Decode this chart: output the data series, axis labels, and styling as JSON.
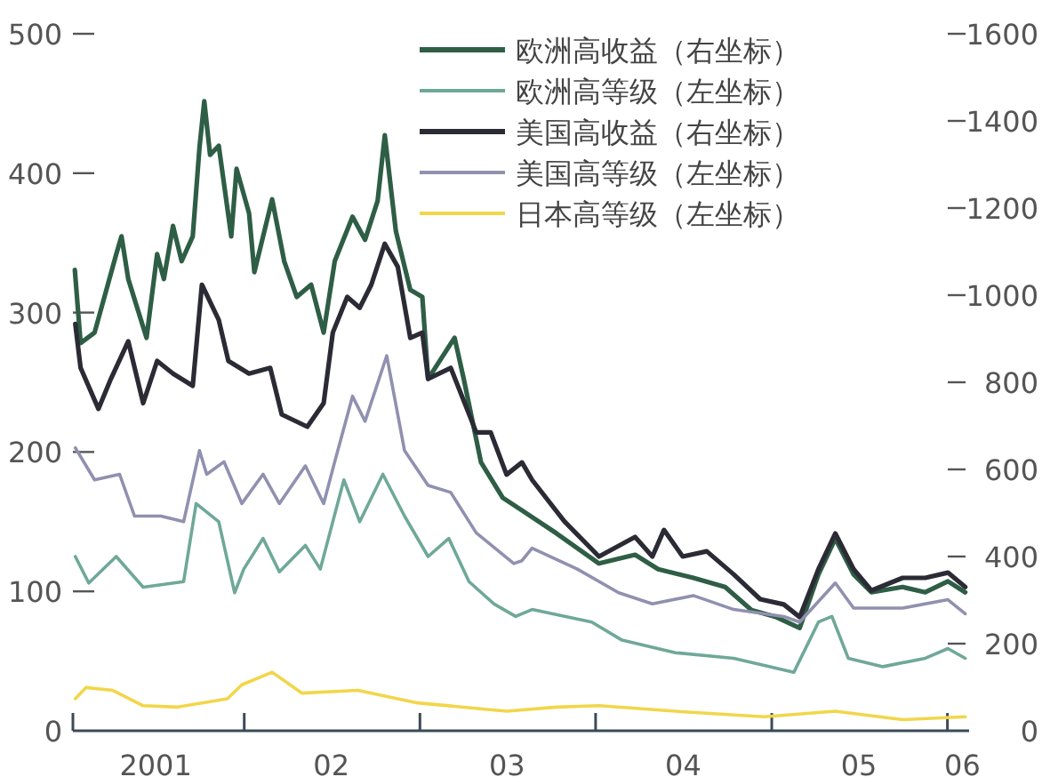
{
  "chart_data": {
    "type": "line",
    "legend": "top right",
    "xlim": [
      "2001-01-10",
      "2006-02-15"
    ],
    "xticks": [
      {
        "value": "2001-07-01",
        "label": "2001"
      },
      {
        "value": "2002-01-01",
        "label": null
      },
      {
        "value": "2002-07-01",
        "label": "02"
      },
      {
        "value": "2003-01-01",
        "label": null
      },
      {
        "value": "2003-07-01",
        "label": "03"
      },
      {
        "value": "2004-01-01",
        "label": null
      },
      {
        "value": "2004-07-01",
        "label": "04"
      },
      {
        "value": "2005-01-01",
        "label": null
      },
      {
        "value": "2005-07-01",
        "label": "05"
      },
      {
        "value": "2006-01-01",
        "label": null
      },
      {
        "value": "2006-02-01",
        "label": "06"
      }
    ],
    "ylim": [
      0,
      500
    ],
    "yticks": [
      0,
      100,
      200,
      300,
      400,
      500
    ],
    "y2lim": [
      0,
      1600
    ],
    "y2ticks": [
      0,
      200,
      400,
      600,
      800,
      1000,
      1200,
      1400,
      1600
    ],
    "series": [
      {
        "name": "欧洲高收益（右坐标）",
        "color": "#2e5e45",
        "axis": "y2",
        "x": [
          "2001-01-14",
          "2001-01-26",
          "2001-02-24",
          "2001-04-10",
          "2001-04-21",
          "2001-05-05",
          "2001-06-12",
          "2001-07-04",
          "2001-07-18",
          "2001-08-06",
          "2001-08-24",
          "2001-09-16",
          "2001-09-30",
          "2001-10-10",
          "2001-10-22",
          "2001-11-09",
          "2001-12-05",
          "2001-12-16",
          "2002-01-11",
          "2002-01-22",
          "2002-02-28",
          "2002-03-25",
          "2002-04-20",
          "2002-05-20",
          "2002-06-15",
          "2002-07-08",
          "2002-08-14",
          "2002-09-09",
          "2002-10-05",
          "2002-10-20",
          "2002-11-12",
          "2002-12-12",
          "2003-01-06",
          "2003-01-18",
          "2003-03-14",
          "2003-04-02",
          "2003-05-08",
          "2003-06-22",
          "2003-08-01",
          "2003-10-12",
          "2004-01-08",
          "2004-03-23",
          "2004-05-10",
          "2004-07-22",
          "2004-09-26",
          "2004-11-20",
          "2005-01-10",
          "2005-02-28",
          "2005-04-08",
          "2005-05-13",
          "2005-06-20",
          "2005-07-27",
          "2005-09-30",
          "2005-11-16",
          "2006-01-02",
          "2006-02-07"
        ],
        "values": [
          1058,
          890,
          914,
          1094,
          1135,
          1037,
          902,
          1094,
          1037,
          1159,
          1078,
          1135,
          1339,
          1445,
          1322,
          1343,
          1135,
          1290,
          1188,
          1053,
          1220,
          1078,
          996,
          1024,
          914,
          1078,
          1180,
          1127,
          1216,
          1367,
          1147,
          1012,
          996,
          808,
          902,
          808,
          616,
          535,
          506,
          453,
          384,
          404,
          371,
          351,
          330,
          277,
          261,
          236,
          359,
          441,
          359,
          318,
          330,
          318,
          343,
          318
        ]
      },
      {
        "name": "欧洲高等级（左坐标）",
        "color": "#6fa898",
        "axis": "y",
        "x": [
          "2001-01-15",
          "2001-02-12",
          "2001-04-10",
          "2001-06-05",
          "2001-08-28",
          "2001-09-23",
          "2001-11-09",
          "2001-12-12",
          "2001-12-31",
          "2002-02-09",
          "2002-03-15",
          "2002-05-08",
          "2002-06-08",
          "2002-07-27",
          "2002-08-29",
          "2002-10-16",
          "2002-11-30",
          "2003-01-18",
          "2003-03-02",
          "2003-04-13",
          "2003-06-04",
          "2003-07-19",
          "2003-08-22",
          "2003-12-24",
          "2004-02-25",
          "2004-06-15",
          "2004-10-14",
          "2005-02-16",
          "2005-04-08",
          "2005-05-06",
          "2005-06-09",
          "2005-08-20",
          "2005-11-16",
          "2006-01-02",
          "2006-02-07"
        ],
        "values": [
          125,
          106,
          125,
          103,
          107,
          163,
          150,
          99,
          116,
          138,
          114,
          133,
          116,
          180,
          150,
          184,
          154,
          125,
          138,
          107,
          91,
          82,
          87,
          78,
          65,
          56,
          52,
          42,
          78,
          82,
          52,
          46,
          52,
          59,
          52
        ]
      },
      {
        "name": "美国高收益（右坐标）",
        "color": "#2b2b35",
        "axis": "y2",
        "x": [
          "2001-01-15",
          "2001-01-26",
          "2001-03-04",
          "2001-03-30",
          "2001-05-05",
          "2001-06-05",
          "2001-07-04",
          "2001-08-06",
          "2001-09-16",
          "2001-10-05",
          "2001-11-09",
          "2001-11-29",
          "2002-01-11",
          "2002-02-24",
          "2002-03-20",
          "2002-05-12",
          "2002-06-15",
          "2002-07-04",
          "2002-08-03",
          "2002-08-29",
          "2002-09-22",
          "2002-10-20",
          "2002-11-16",
          "2002-12-12",
          "2003-01-06",
          "2003-01-18",
          "2003-03-06",
          "2003-04-28",
          "2003-05-28",
          "2003-06-30",
          "2003-08-01",
          "2003-08-22",
          "2003-10-28",
          "2004-01-08",
          "2004-03-23",
          "2004-04-28",
          "2004-05-22",
          "2004-06-30",
          "2004-08-19",
          "2004-10-14",
          "2004-12-08",
          "2005-01-26",
          "2005-02-28",
          "2005-04-08",
          "2005-05-13",
          "2005-06-20",
          "2005-07-27",
          "2005-09-30",
          "2005-11-16",
          "2006-01-02",
          "2006-02-07"
        ],
        "values": [
          934,
          833,
          739,
          808,
          894,
          752,
          849,
          820,
          792,
          1024,
          943,
          849,
          820,
          833,
          726,
          698,
          752,
          914,
          996,
          971,
          1024,
          1118,
          1065,
          902,
          914,
          808,
          833,
          685,
          685,
          588,
          616,
          576,
          481,
          400,
          445,
          400,
          461,
          400,
          412,
          359,
          302,
          290,
          261,
          371,
          453,
          371,
          322,
          351,
          351,
          363,
          330
        ]
      },
      {
        "name": "美国高等级（左坐标）",
        "color": "#9090b0",
        "axis": "y",
        "x": [
          "2001-01-15",
          "2001-02-24",
          "2001-04-17",
          "2001-05-18",
          "2001-07-12",
          "2001-08-28",
          "2001-09-30",
          "2001-10-15",
          "2001-11-20",
          "2001-12-27",
          "2002-02-09",
          "2002-03-15",
          "2002-05-08",
          "2002-06-15",
          "2002-07-08",
          "2002-08-14",
          "2002-09-09",
          "2002-10-24",
          "2002-11-30",
          "2003-01-18",
          "2003-03-06",
          "2003-04-28",
          "2003-07-15",
          "2003-08-01",
          "2003-08-22",
          "2003-11-24",
          "2004-02-18",
          "2004-04-28",
          "2004-07-22",
          "2004-10-14",
          "2005-01-26",
          "2005-02-28",
          "2005-05-13",
          "2005-06-20",
          "2005-09-30",
          "2006-01-02",
          "2006-02-07"
        ],
        "values": [
          203,
          180,
          184,
          154,
          154,
          150,
          201,
          184,
          193,
          163,
          184,
          163,
          190,
          163,
          193,
          240,
          222,
          269,
          201,
          176,
          171,
          142,
          120,
          122,
          131,
          116,
          99,
          91,
          97,
          87,
          82,
          78,
          106,
          88,
          88,
          94,
          84
        ]
      },
      {
        "name": "日本高等级（左坐标）",
        "color": "#f2d64a",
        "axis": "y",
        "x": [
          "2001-01-15",
          "2001-02-06",
          "2001-04-03",
          "2001-06-05",
          "2001-08-16",
          "2001-11-27",
          "2001-12-27",
          "2002-02-28",
          "2002-05-01",
          "2002-08-25",
          "2002-12-27",
          "2003-06-30",
          "2003-10-12",
          "2004-01-08",
          "2004-06-15",
          "2004-12-16",
          "2005-05-13",
          "2005-09-30",
          "2006-02-07"
        ],
        "values": [
          23,
          31,
          29,
          18,
          17,
          23,
          33,
          42,
          27,
          29,
          20,
          14,
          17,
          18,
          14,
          10,
          14,
          8,
          10
        ]
      }
    ]
  }
}
